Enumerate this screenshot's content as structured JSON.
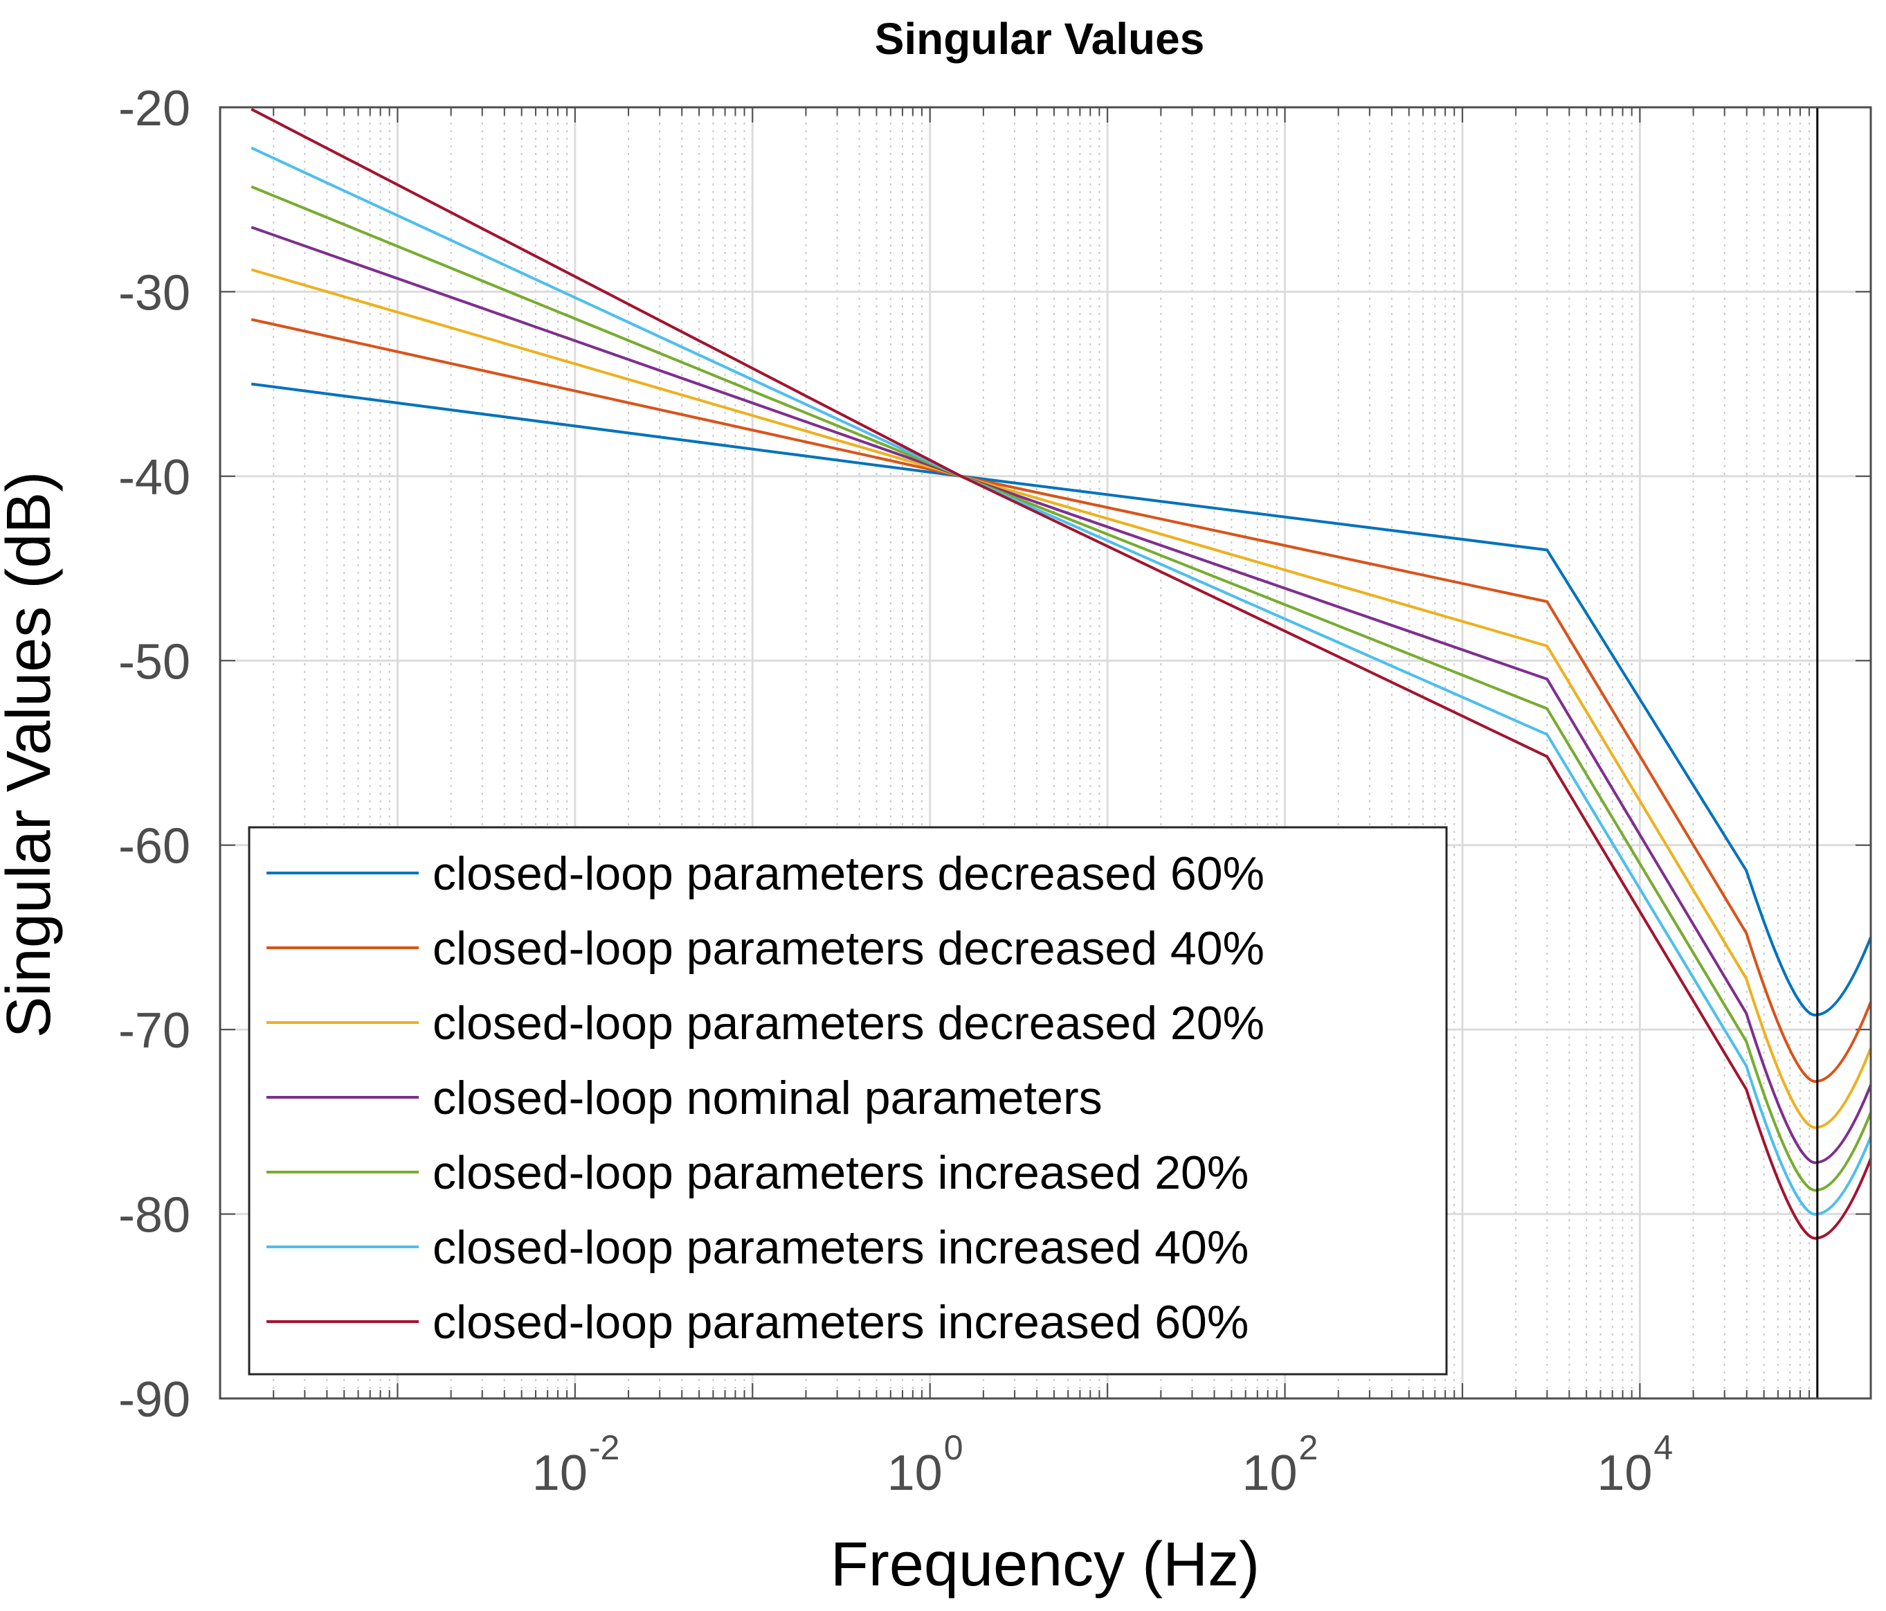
{
  "chart_data": {
    "type": "line",
    "title": "Singular Values",
    "xlabel": "Frequency (Hz)",
    "ylabel": "Singular Values (dB)",
    "xscale": "log",
    "xlim": [
      0.0001,
      200000
    ],
    "ylim": [
      -90,
      -20
    ],
    "grid": true,
    "x_ticks": [
      0.01,
      1,
      100,
      10000
    ],
    "x_tick_labels": [
      {
        "base": "10",
        "exp": "-2"
      },
      {
        "base": "10",
        "exp": "0"
      },
      {
        "base": "10",
        "exp": "2"
      },
      {
        "base": "10",
        "exp": "4"
      }
    ],
    "y_ticks": [
      -20,
      -30,
      -40,
      -50,
      -60,
      -70,
      -80,
      -90
    ],
    "y_tick_labels": [
      "-20",
      "-30",
      "-40",
      "-50",
      "-60",
      "-70",
      "-80",
      "-90"
    ],
    "vertical_marker_x": 100000,
    "legend_position": "bottom-left",
    "series": [
      {
        "name": "closed-loop parameters decreased 60%",
        "color": "#0072BD",
        "x": [
          0.00015,
          1.5,
          3000,
          100000,
          200000
        ],
        "y": [
          -35,
          -40,
          -44,
          -69.2,
          -65
        ]
      },
      {
        "name": "closed-loop parameters decreased 40%",
        "color": "#D95319",
        "x": [
          0.00015,
          1.5,
          3000,
          100000,
          200000
        ],
        "y": [
          -31.5,
          -40,
          -46.8,
          -72.8,
          -68.5
        ]
      },
      {
        "name": "closed-loop parameters decreased 20%",
        "color": "#EDB120",
        "x": [
          0.00015,
          1.5,
          3000,
          100000,
          200000
        ],
        "y": [
          -28.8,
          -40,
          -49.2,
          -75.3,
          -71
        ]
      },
      {
        "name": "closed-loop nominal parameters",
        "color": "#7E2F8E",
        "x": [
          0.00015,
          1.5,
          3000,
          100000,
          200000
        ],
        "y": [
          -26.5,
          -40,
          -51,
          -77.2,
          -73
        ]
      },
      {
        "name": "closed-loop parameters increased 20%",
        "color": "#77AC30",
        "x": [
          0.00015,
          1.5,
          3000,
          100000,
          200000
        ],
        "y": [
          -24.3,
          -40,
          -52.6,
          -78.7,
          -74.5
        ]
      },
      {
        "name": "closed-loop parameters increased 40%",
        "color": "#4DBEEE",
        "x": [
          0.00015,
          1.5,
          3000,
          100000,
          200000
        ],
        "y": [
          -22.2,
          -40,
          -54,
          -80,
          -75.8
        ]
      },
      {
        "name": "closed-loop parameters increased 60%",
        "color": "#A2142F",
        "x": [
          0.00015,
          1.5,
          3000,
          100000,
          200000
        ],
        "y": [
          -20.1,
          -40,
          -55.2,
          -81.3,
          -77
        ]
      }
    ]
  }
}
